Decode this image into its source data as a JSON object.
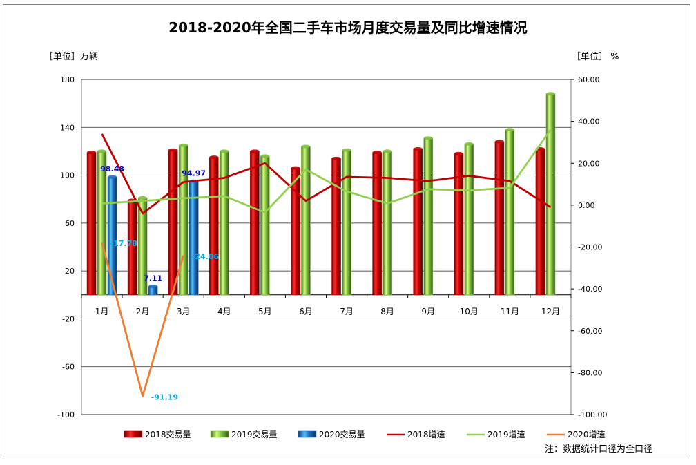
{
  "chart_data": {
    "type": "bar",
    "title": "2018-2020年全国二手车市场月度交易量及同比增速情况",
    "left_axis_unit": "［单位］万辆",
    "right_axis_unit": "［单位］ %",
    "categories": [
      "1月",
      "2月",
      "3月",
      "4月",
      "5月",
      "6月",
      "7月",
      "8月",
      "9月",
      "10月",
      "11月",
      "12月"
    ],
    "left_ylim": [
      -100,
      180
    ],
    "left_ticks": [
      "180",
      "140",
      "100",
      "60",
      "20",
      "-20",
      "-60",
      "-100"
    ],
    "left_tick_values": [
      180,
      140,
      100,
      60,
      20,
      -20,
      -60,
      -100
    ],
    "right_ylim": [
      -100,
      60
    ],
    "right_ticks": [
      "60.00",
      "40.00",
      "20.00",
      "0.00",
      "-20.00",
      "-40.00",
      "-60.00",
      "-80.00",
      "-100.00"
    ],
    "right_tick_values": [
      60,
      40,
      20,
      0,
      -20,
      -40,
      -60,
      -80,
      -100
    ],
    "bar_series": [
      {
        "name": "2018交易量",
        "color": "#c00000",
        "values": [
          119,
          79,
          121,
          115,
          120,
          106,
          114,
          119,
          122,
          118,
          128,
          122
        ]
      },
      {
        "name": "2019交易量",
        "color": "#7fbf3f",
        "values": [
          120,
          81,
          125,
          120,
          116,
          124,
          121,
          120,
          131,
          126,
          138,
          168
        ]
      },
      {
        "name": "2020交易量",
        "color": "#1f6fbf",
        "values": [
          98.48,
          7.11,
          94.97
        ]
      }
    ],
    "line_series": [
      {
        "name": "2018增速",
        "color": "#c00000",
        "values": [
          34,
          -4,
          11,
          13,
          20,
          2,
          13.5,
          13,
          11.5,
          14,
          11.5,
          -1
        ]
      },
      {
        "name": "2019增速",
        "color": "#92d050",
        "values": [
          0.8,
          2,
          3.3,
          4.3,
          -3.5,
          17,
          6.5,
          0.8,
          7.6,
          7,
          8.3,
          36
        ]
      },
      {
        "name": "2020增速",
        "color": "#ed7d31",
        "values": [
          -17.78,
          -91.19,
          -24.06
        ]
      }
    ],
    "bar_labels": [
      {
        "series": 2,
        "index": 0,
        "text": "98.48",
        "color": "#0000cc"
      },
      {
        "series": 2,
        "index": 1,
        "text": "7.11",
        "color": "#0000cc"
      },
      {
        "series": 2,
        "index": 2,
        "text": "94.97",
        "color": "#0000cc"
      }
    ],
    "line_labels": [
      {
        "series": 2,
        "index": 0,
        "text": "-17.78",
        "color": "#00b0f0"
      },
      {
        "series": 2,
        "index": 1,
        "text": "-91.19",
        "color": "#00b0f0"
      },
      {
        "series": 2,
        "index": 2,
        "text": "-24.06",
        "color": "#00b0f0"
      }
    ],
    "legend": [
      "2018交易量",
      "2019交易量",
      "2020交易量",
      "2018增速",
      "2019增速",
      "2020增速"
    ],
    "legend_position": "bottom",
    "note": "注：数据统计口径为全口径",
    "grid": true
  }
}
